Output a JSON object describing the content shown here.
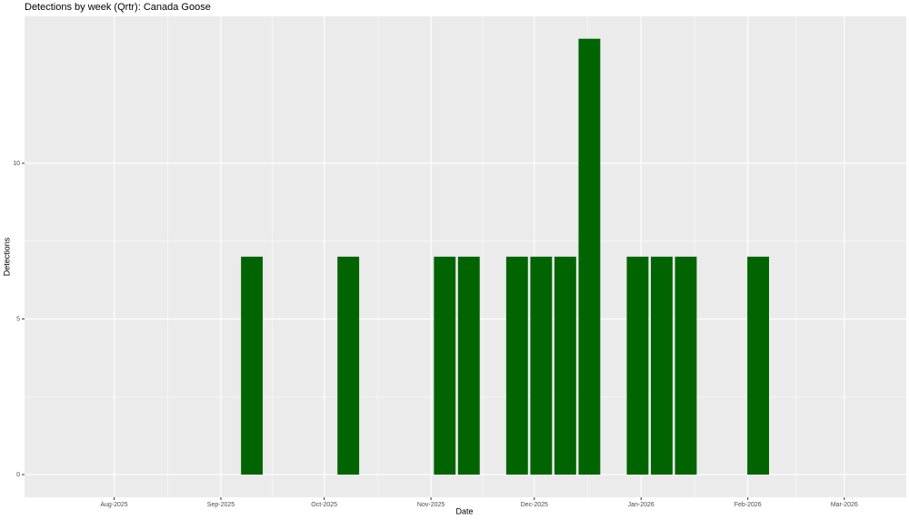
{
  "chart_data": {
    "type": "bar",
    "title": "Detections by week (Qrtr): Canada Goose",
    "xlabel": "Date",
    "ylabel": "Detections",
    "x": [
      "2025-09-10",
      "2025-10-08",
      "2025-11-05",
      "2025-11-12",
      "2025-11-26",
      "2025-12-03",
      "2025-12-10",
      "2025-12-17",
      "2025-12-31",
      "2026-01-07",
      "2026-01-14",
      "2026-02-04"
    ],
    "values": [
      7,
      7,
      7,
      7,
      7,
      7,
      7,
      14,
      7,
      7,
      7,
      7
    ],
    "color": "#006400",
    "xlim": [
      "2025-07-06",
      "2026-03-19"
    ],
    "xticks": [
      {
        "value": "2025-08-01",
        "label": "Aug-2025"
      },
      {
        "value": "2025-09-01",
        "label": "Sep-2025"
      },
      {
        "value": "2025-10-01",
        "label": "Oct-2025"
      },
      {
        "value": "2025-11-01",
        "label": "Nov-2025"
      },
      {
        "value": "2025-12-01",
        "label": "Dec-2025"
      },
      {
        "value": "2026-01-01",
        "label": "Jan-2026"
      },
      {
        "value": "2026-02-01",
        "label": "Feb-2026"
      },
      {
        "value": "2026-03-01",
        "label": "Mar-2026"
      }
    ],
    "ylim": [
      -0.73,
      14.72
    ],
    "yticks": [
      0,
      5,
      10
    ],
    "grid": true
  }
}
